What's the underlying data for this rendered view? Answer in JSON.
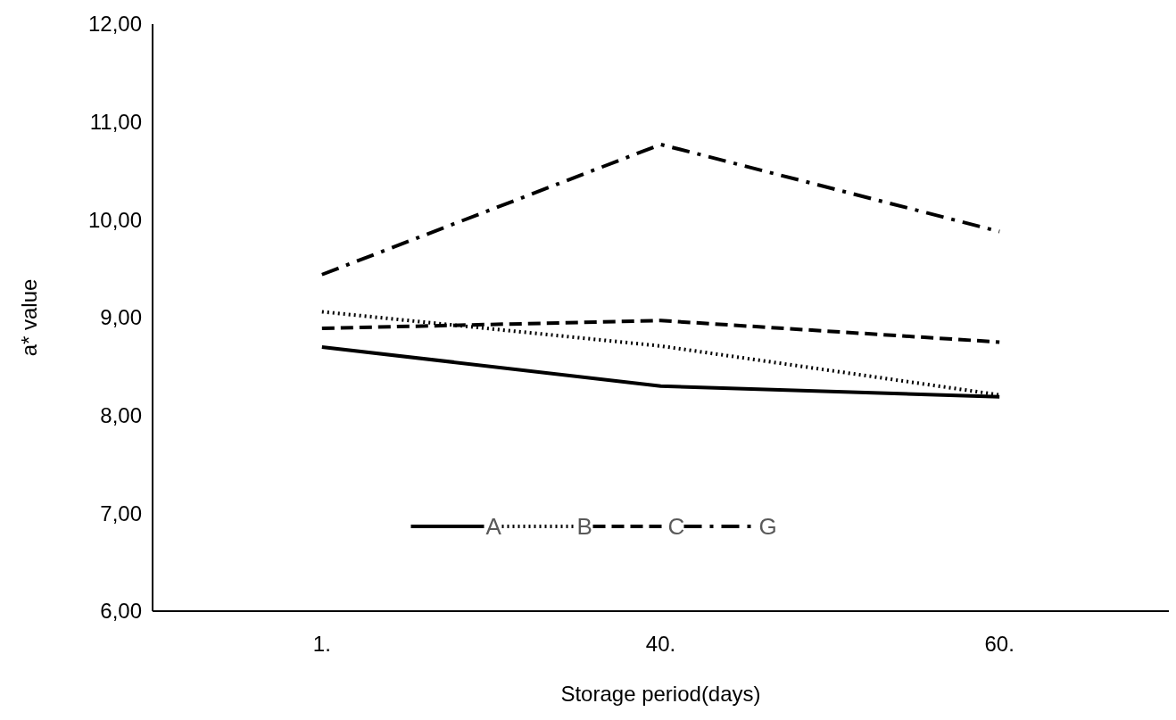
{
  "chart_data": {
    "type": "line",
    "xlabel": "Storage period(days)",
    "ylabel": "a* value",
    "categories": [
      "1.",
      "40.",
      "60."
    ],
    "series": [
      {
        "name": "A",
        "color": "#000000",
        "line_style": "solid",
        "values": [
          8.7,
          8.3,
          8.19
        ]
      },
      {
        "name": "B",
        "color": "#000000",
        "line_style": "dotted",
        "values": [
          9.06,
          8.71,
          8.21
        ]
      },
      {
        "name": "C",
        "color": "#000000",
        "line_style": "dashed",
        "values": [
          8.89,
          8.97,
          8.75
        ]
      },
      {
        "name": "G",
        "color": "#000000",
        "line_style": "dashdot",
        "values": [
          9.44,
          10.77,
          9.88
        ]
      }
    ],
    "ylim": [
      6,
      12
    ],
    "yticks": [
      {
        "value": 6,
        "label": "6,00"
      },
      {
        "value": 7,
        "label": "7,00"
      },
      {
        "value": 8,
        "label": "8,00"
      },
      {
        "value": 9,
        "label": "9,00"
      },
      {
        "value": 10,
        "label": "10,00"
      },
      {
        "value": 11,
        "label": "11,00"
      },
      {
        "value": 12,
        "label": "12,00"
      }
    ],
    "grid": false,
    "legend": "bottom",
    "marker": "none"
  }
}
